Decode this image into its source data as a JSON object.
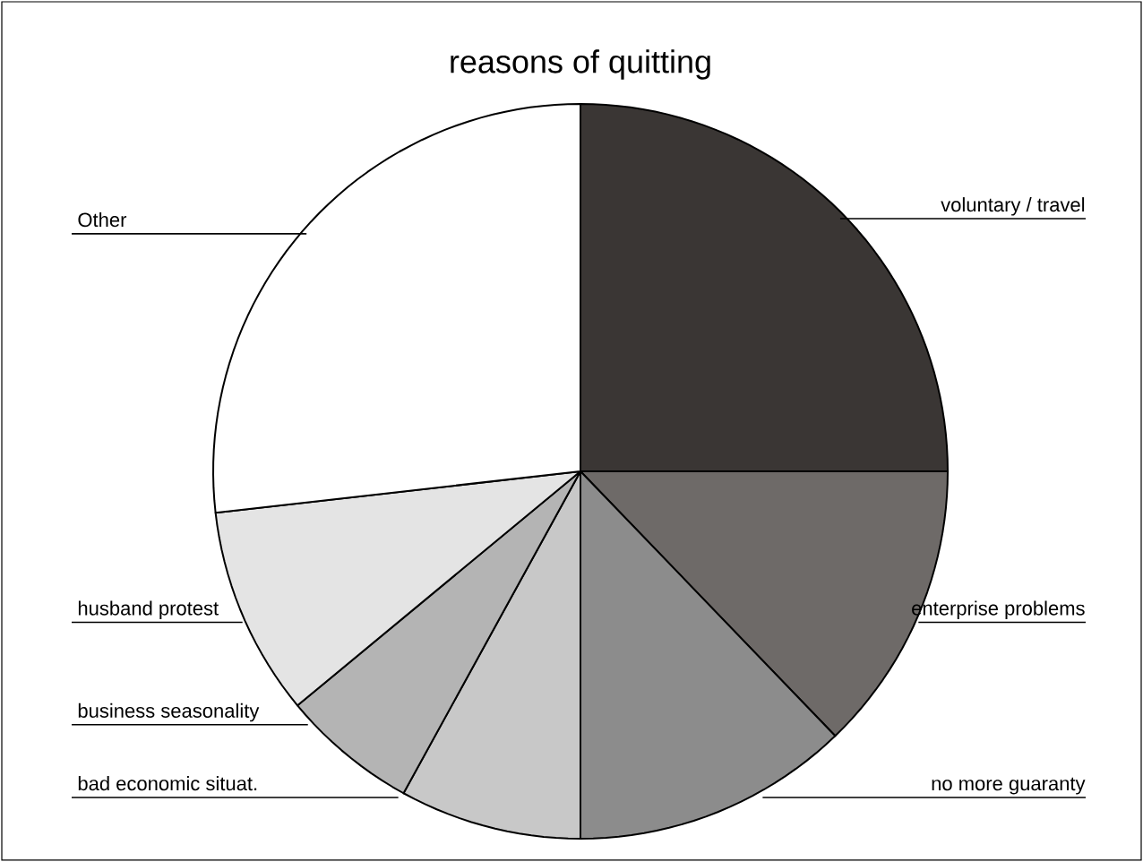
{
  "chart_data": {
    "type": "pie",
    "title": "reasons of quitting",
    "categories": [
      "voluntary / travel",
      "enterprise problems",
      "no more guaranty",
      "bad economic situat.",
      "business seasonality",
      "husband protest",
      "Other"
    ],
    "values": [
      25,
      12.8,
      12.2,
      8,
      6,
      9.2,
      26.8
    ],
    "colors": [
      "#3a3634",
      "#6e6a68",
      "#8c8c8c",
      "#c8c8c8",
      "#b4b4b4",
      "#e4e4e4",
      "#ffffff"
    ]
  }
}
